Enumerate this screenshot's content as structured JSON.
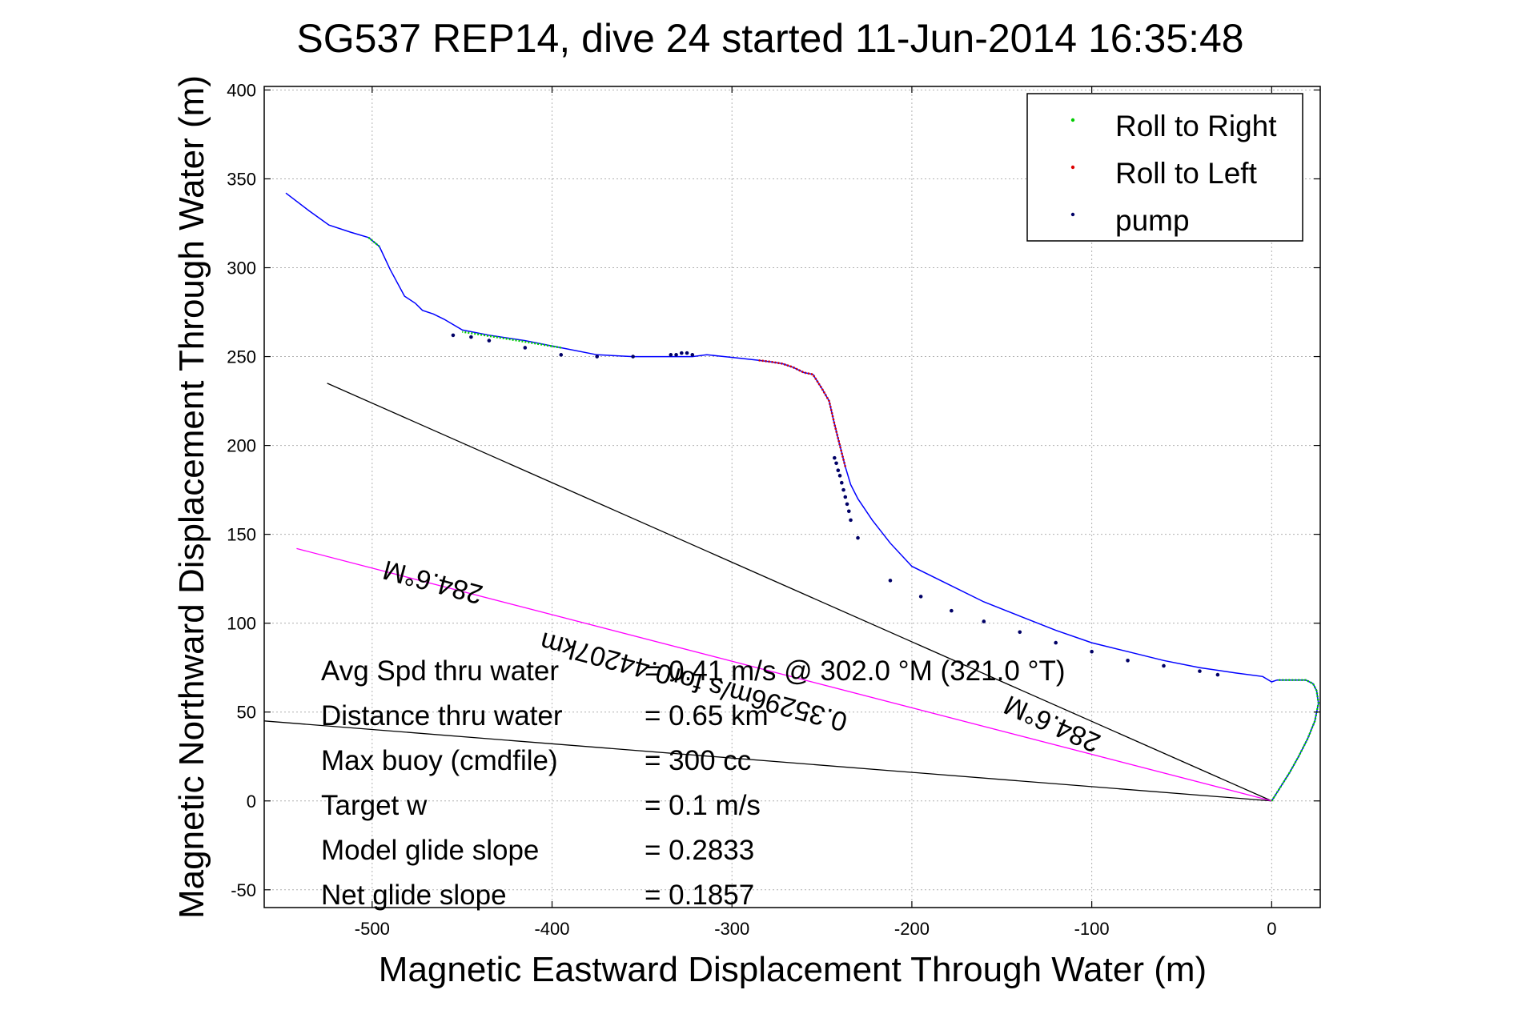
{
  "chart_data": {
    "type": "line",
    "title": "SG537 REP14, dive 24 started 11-Jun-2014 16:35:48",
    "xlabel": "Magnetic Eastward Displacement Through Water (m)",
    "ylabel": "Magnetic Northward Displacement Through Water (m)",
    "xlim": [
      -560,
      27
    ],
    "ylim": [
      -60,
      402
    ],
    "xticks": [
      -500,
      -400,
      -300,
      -200,
      -100,
      0
    ],
    "yticks": [
      -50,
      0,
      50,
      100,
      150,
      200,
      250,
      300,
      350,
      400
    ],
    "xtick_labels": [
      "-500",
      "-400",
      "-300",
      "-200",
      "-100",
      "0"
    ],
    "ytick_labels": [
      "-50",
      "0",
      "50",
      "100",
      "150",
      "200",
      "250",
      "300",
      "350",
      "400"
    ],
    "grid": true,
    "legend_position": "top-right",
    "legend": [
      {
        "label": "Roll to Right",
        "color": "#00cc00"
      },
      {
        "label": "Roll to Left",
        "color": "#dd0000"
      },
      {
        "label": "pump",
        "color": "#000066"
      }
    ],
    "track": {
      "color": "#0000ff",
      "x": [
        0,
        5,
        10,
        15,
        20,
        24,
        26,
        25,
        23,
        19,
        14,
        8,
        3,
        0,
        -5,
        -20,
        -40,
        -60,
        -80,
        -100,
        -120,
        -140,
        -160,
        -180,
        -200,
        -212,
        -222,
        -230,
        -234,
        -237,
        -240,
        -243,
        -246,
        -250,
        -255,
        -260,
        -266,
        -272,
        -278,
        -286,
        -295,
        -304,
        -314,
        -322,
        -330,
        -340,
        -355,
        -375,
        -395,
        -415,
        -435,
        -450,
        -460,
        -466,
        -472,
        -476,
        -482,
        -490,
        -496,
        -502,
        -512,
        -524,
        -535,
        -548
      ],
      "y": [
        0,
        8,
        16,
        25,
        35,
        45,
        55,
        62,
        66,
        68,
        68,
        68,
        68,
        67,
        70,
        72,
        75,
        79,
        84,
        89,
        96,
        104,
        112,
        122,
        132,
        145,
        158,
        170,
        178,
        188,
        200,
        212,
        225,
        232,
        240,
        241,
        244,
        246,
        247,
        248,
        249,
        250,
        251,
        250,
        250,
        250,
        250,
        251,
        255,
        259,
        262,
        265,
        271,
        274,
        276,
        280,
        284,
        299,
        312,
        317,
        320,
        324,
        332,
        342
      ]
    },
    "roll_right_segments": [
      {
        "x": [
          0,
          5,
          10,
          15,
          20,
          24,
          26,
          25,
          23,
          19,
          14,
          8,
          3
        ],
        "y": [
          0,
          8,
          16,
          25,
          35,
          45,
          55,
          62,
          66,
          68,
          68,
          68,
          68
        ]
      },
      {
        "x": [
          -395,
          -425,
          -450
        ],
        "y": [
          255,
          260,
          264
        ]
      },
      {
        "x": [
          -502,
          -496
        ],
        "y": [
          317,
          312
        ]
      }
    ],
    "roll_left_segment": {
      "x": [
        -237,
        -240,
        -243,
        -246,
        -250,
        -255,
        -260,
        -266,
        -272,
        -278,
        -286
      ],
      "y": [
        188,
        200,
        212,
        225,
        232,
        240,
        241,
        244,
        246,
        247,
        248
      ]
    },
    "pump_points": {
      "x": [
        -234,
        -235,
        -236,
        -237,
        -238,
        -239,
        -240,
        -241,
        -242,
        -243,
        -230,
        -212,
        -195,
        -178,
        -160,
        -140,
        -120,
        -100,
        -80,
        -60,
        -40,
        -30,
        -322,
        -325,
        -328,
        -331,
        -334,
        -355,
        -375,
        -395,
        -415,
        -435,
        -445,
        -455
      ],
      "y": [
        158,
        163,
        167,
        171,
        175,
        179,
        183,
        186,
        190,
        193,
        148,
        124,
        115,
        107,
        101,
        95,
        89,
        84,
        79,
        76,
        73,
        71,
        251,
        252,
        252,
        251,
        251,
        250,
        250,
        251,
        255,
        259,
        261,
        262
      ]
    },
    "lines": [
      {
        "kind": "black",
        "x": [
          -525,
          0
        ],
        "y": [
          235,
          0
        ]
      },
      {
        "kind": "black",
        "x": [
          -560,
          0
        ],
        "y": [
          45,
          0
        ]
      },
      {
        "kind": "magenta",
        "x": [
          -542,
          0
        ],
        "y": [
          142,
          0
        ]
      }
    ],
    "annotations": [
      {
        "text": "284.6°M",
        "x": -465,
        "y": 128,
        "rotation": 195
      },
      {
        "text": "284.6°M",
        "x": -120,
        "y": 48,
        "rotation": 204
      },
      {
        "text": "0.35296m/s for0.44207km",
        "x": -320,
        "y": 72,
        "rotation": 195
      }
    ],
    "stats": [
      {
        "label": "Avg Spd thru water",
        "value": "=  0.41 m/s @ 302.0 °M (321.0 °T)"
      },
      {
        "label": "Distance thru water",
        "value": "=  0.65 km"
      },
      {
        "label": "Max buoy (cmdfile)",
        "value": "= 300 cc"
      },
      {
        "label": "Target w",
        "value": "= 0.1 m/s"
      },
      {
        "label": "Model glide slope",
        "value": "= 0.2833"
      },
      {
        "label": "Net glide slope",
        "value": "= 0.1857"
      }
    ]
  }
}
